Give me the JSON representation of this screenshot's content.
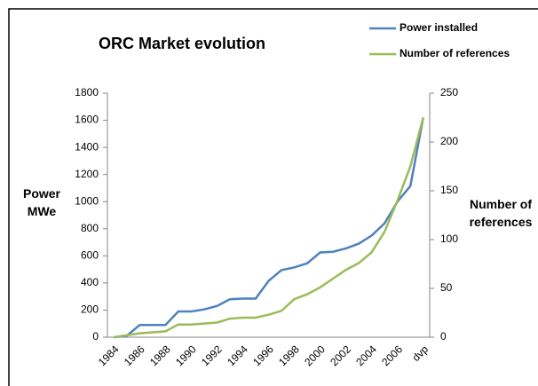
{
  "chart_data": {
    "type": "line",
    "title": "ORC Market evolution",
    "y_label": "Power MWe",
    "y2_label": "Number of references",
    "categories": [
      "1984",
      null,
      "1986",
      null,
      "1988",
      null,
      "1990",
      null,
      "1992",
      null,
      "1994",
      null,
      "1996",
      null,
      "1998",
      null,
      "2000",
      null,
      "2002",
      null,
      "2004",
      null,
      "2006",
      null,
      "dvp"
    ],
    "series": [
      {
        "name": "Power installed",
        "color": "#4f81bd",
        "axis": "y",
        "values": [
          0,
          10,
          90,
          90,
          90,
          190,
          190,
          205,
          230,
          280,
          285,
          285,
          415,
          495,
          515,
          545,
          625,
          630,
          655,
          690,
          750,
          840,
          1000,
          1115,
          1620
        ]
      },
      {
        "name": "Number of references",
        "color": "#9bbb59",
        "axis": "y2",
        "values": [
          0,
          2,
          4,
          5,
          6,
          13,
          13,
          14,
          15,
          19,
          20,
          20,
          23,
          27,
          39,
          44,
          51,
          60,
          69,
          76,
          87,
          108,
          140,
          175,
          225
        ]
      }
    ],
    "ylim": [
      0,
      1800
    ],
    "yticks": [
      0,
      200,
      400,
      600,
      800,
      1000,
      1200,
      1400,
      1600,
      1800
    ],
    "y2lim": [
      0,
      250
    ],
    "y2ticks": [
      0,
      50,
      100,
      150,
      200,
      250
    ],
    "legend": "top-right",
    "grid": false
  }
}
